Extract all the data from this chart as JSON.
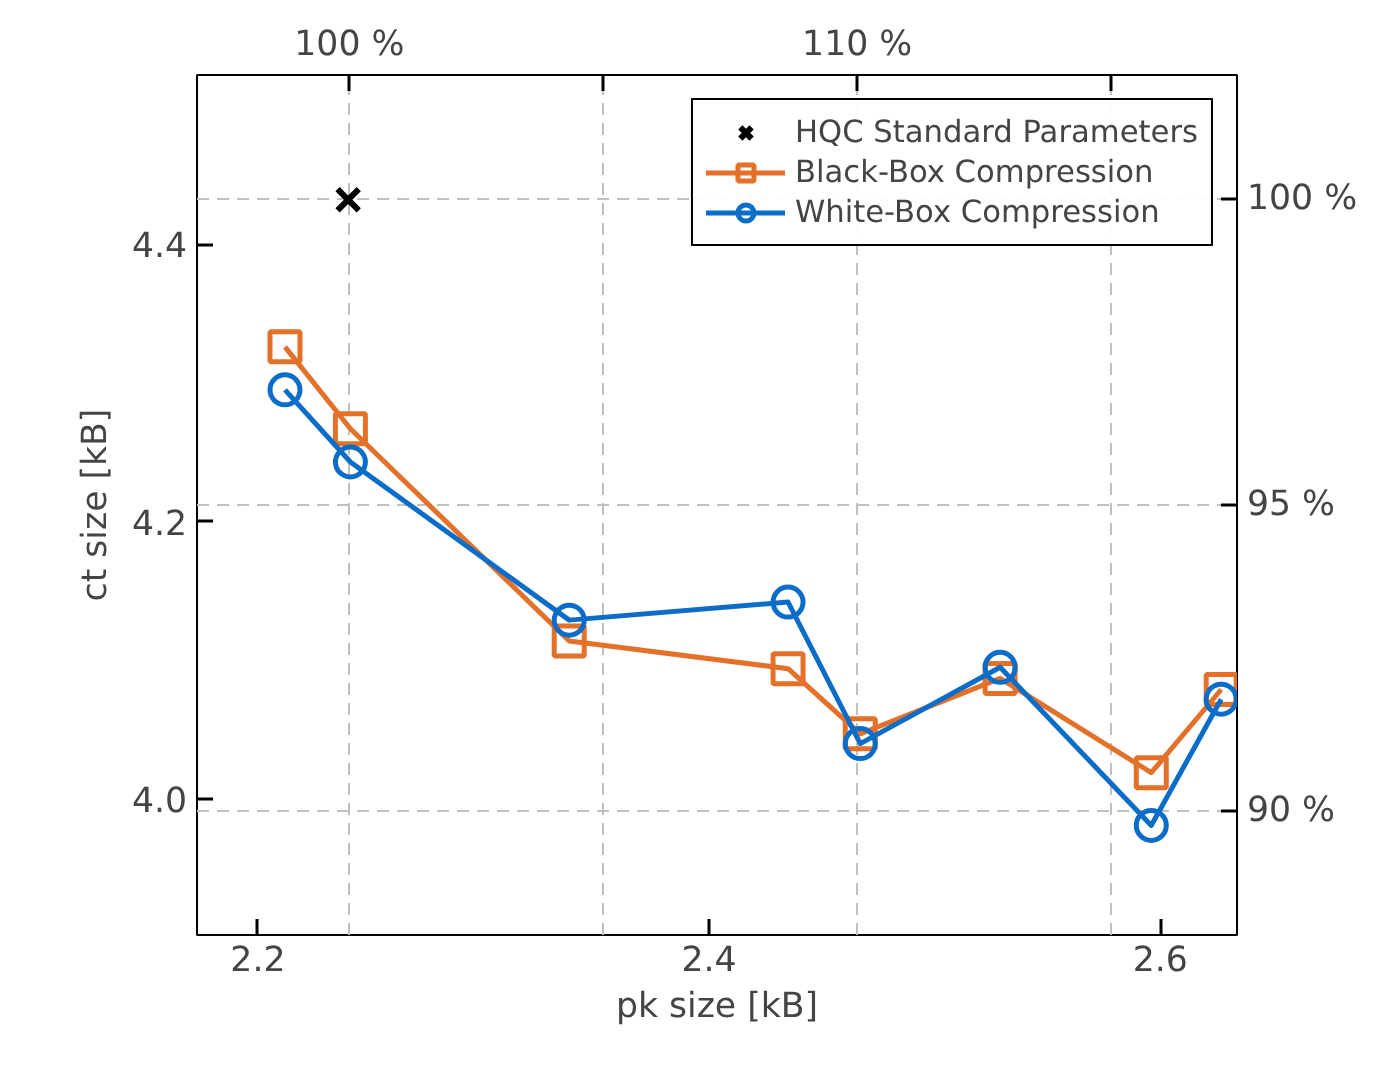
{
  "chart_data": {
    "type": "line",
    "xlabel": "pk size [kB]",
    "ylabel": "ct size [kB]",
    "xlim": [
      2.173,
      2.634
    ],
    "xticks": [
      2.2,
      2.4,
      2.6
    ],
    "ylim": [
      3.902,
      4.522
    ],
    "yticks": [
      {
        "value": 4.0,
        "label": "4.0"
      },
      4.2,
      4.4
    ],
    "x2lim": [
      97.0,
      117.48
    ],
    "x2ticks": [
      {
        "value": 100,
        "label": "100 %"
      },
      {
        "value": 105,
        "label": null
      },
      {
        "value": 110,
        "label": "110 %"
      },
      {
        "value": 115,
        "label": null
      }
    ],
    "y2lim": [
      87.98,
      102.03
    ],
    "y2ticks": [
      {
        "value": 90,
        "label": "90 %"
      },
      {
        "value": 95,
        "label": "95 %"
      },
      {
        "value": 100,
        "label": "100 %"
      }
    ],
    "grid": true,
    "legend": "top right",
    "series": [
      {
        "name": "HQC Standard Parameters",
        "type": "scatter",
        "marker": "cross",
        "color": "#000000",
        "x": [
          2.24
        ],
        "values": [
          4.432
        ]
      },
      {
        "name": "Black-Box Compression",
        "marker": "square",
        "color": "#e4712a",
        "x": [
          2.212,
          2.241,
          2.338,
          2.435,
          2.467,
          2.529,
          2.596,
          2.627
        ],
        "values": [
          4.326,
          4.267,
          4.114,
          4.094,
          4.047,
          4.087,
          4.019,
          4.079
        ]
      },
      {
        "name": "White-Box Compression",
        "marker": "circle",
        "color": "#0c6dc9",
        "x": [
          2.212,
          2.241,
          2.338,
          2.435,
          2.467,
          2.529,
          2.596,
          2.627
        ],
        "values": [
          4.295,
          4.243,
          4.129,
          4.142,
          4.04,
          4.095,
          3.981,
          4.072
        ]
      }
    ]
  }
}
